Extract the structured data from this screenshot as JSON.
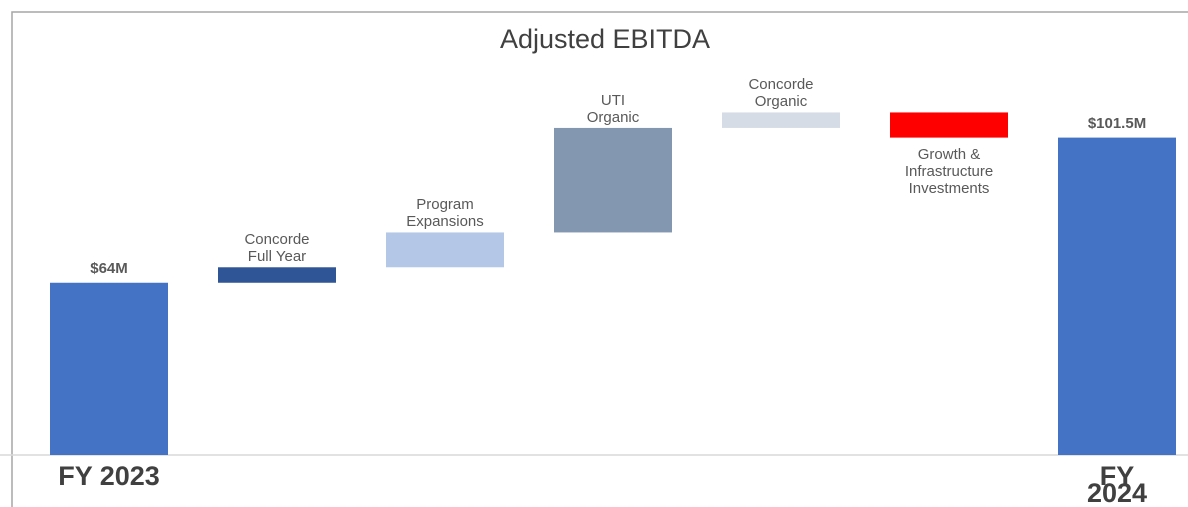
{
  "chart_data": {
    "type": "waterfall",
    "title": "Adjusted EBITDA",
    "categories": [
      "FY 2023",
      "Concorde\nFull Year",
      "Program\nExpansions",
      "UTI\nOrganic",
      "Concorde\nOrganic",
      "Growth &\nInfrastructure\nInvestments",
      "FY 2024"
    ],
    "values": [
      64,
      4,
      9,
      27,
      4,
      -6.5,
      101.5
    ],
    "value_labels": [
      "$64M",
      null,
      null,
      null,
      null,
      null,
      "$101.5M"
    ],
    "is_total": [
      true,
      false,
      false,
      false,
      false,
      false,
      true
    ],
    "colors": [
      "#4472c4",
      "#2f5597",
      "#b4c7e7",
      "#8497b0",
      "#d6dce5",
      "#ff0000",
      "#4472c4"
    ],
    "ylim": [
      19.5,
      120
    ]
  }
}
